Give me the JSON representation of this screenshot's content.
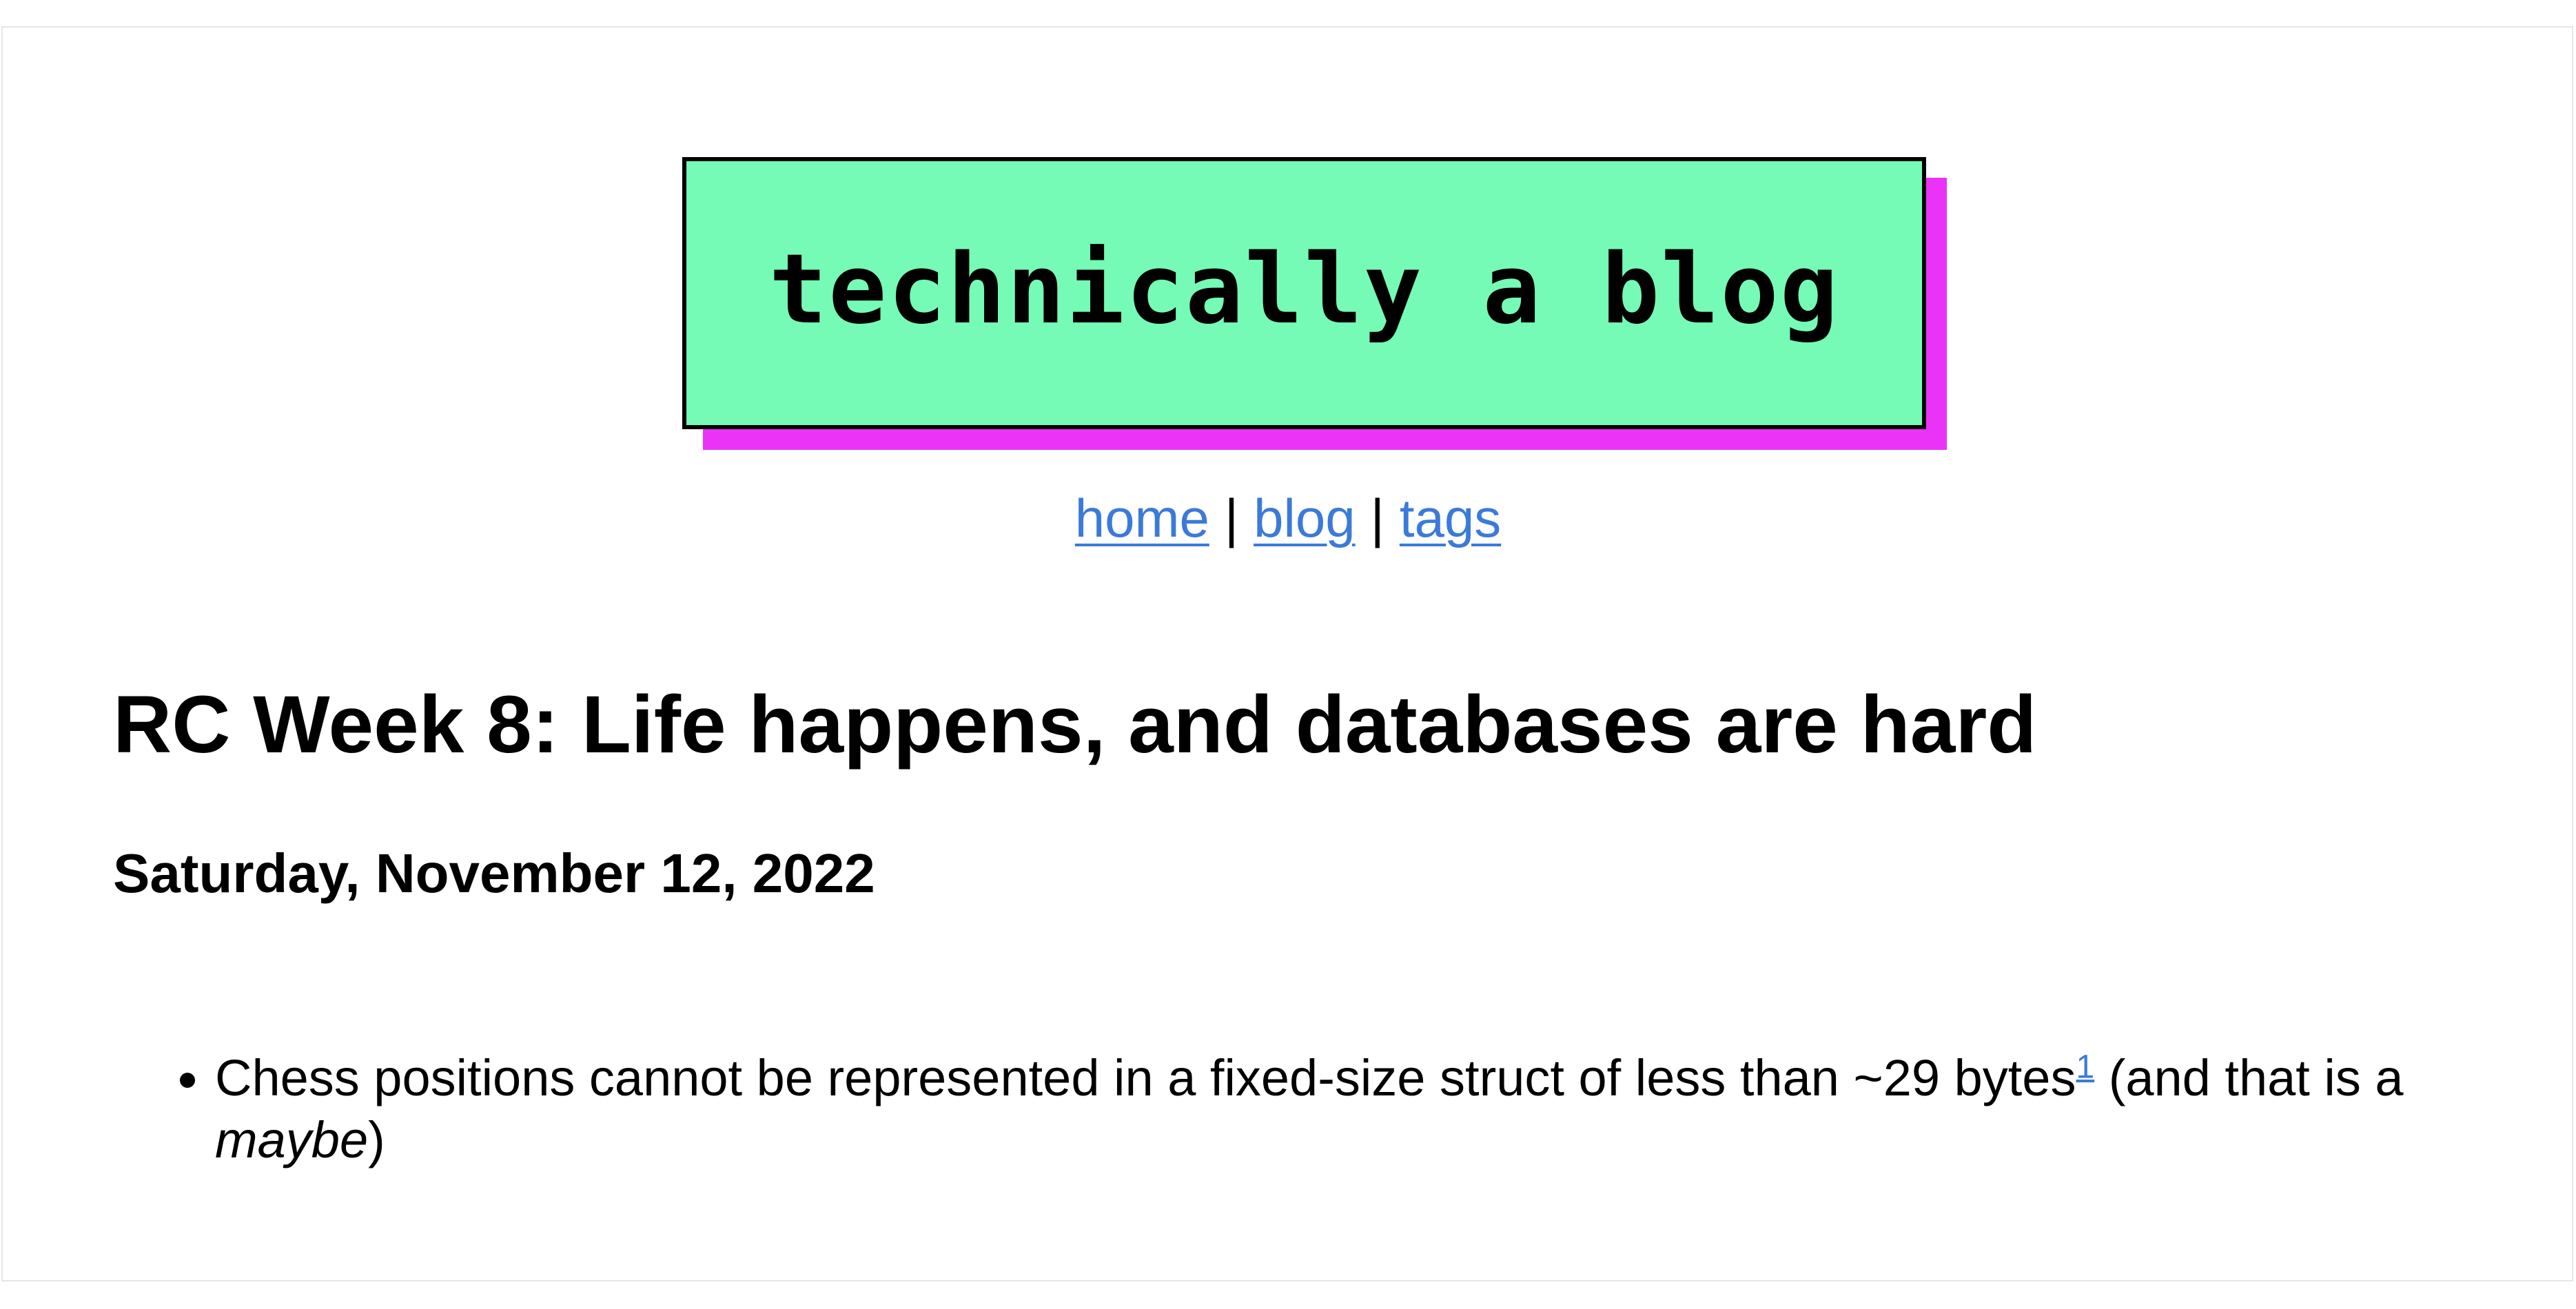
{
  "header": {
    "logo_text": "technically a blog",
    "colors": {
      "logo_background": "#75fbb6",
      "logo_shadow": "#ea33f7",
      "link": "#3b7ad9"
    }
  },
  "nav": {
    "items": [
      {
        "label": "home"
      },
      {
        "label": "blog"
      },
      {
        "label": "tags"
      }
    ],
    "separator": "|"
  },
  "post": {
    "title": "RC Week 8: Life happens, and databases are hard",
    "date": "Saturday, November 12, 2022",
    "bullets": [
      {
        "text_before": "Chess positions cannot be represented in a fixed-size struct of less than ~29 bytes",
        "footnote_ref": "1",
        "text_middle": " (and that is a ",
        "emphasis": "maybe",
        "text_after": ")"
      }
    ]
  }
}
